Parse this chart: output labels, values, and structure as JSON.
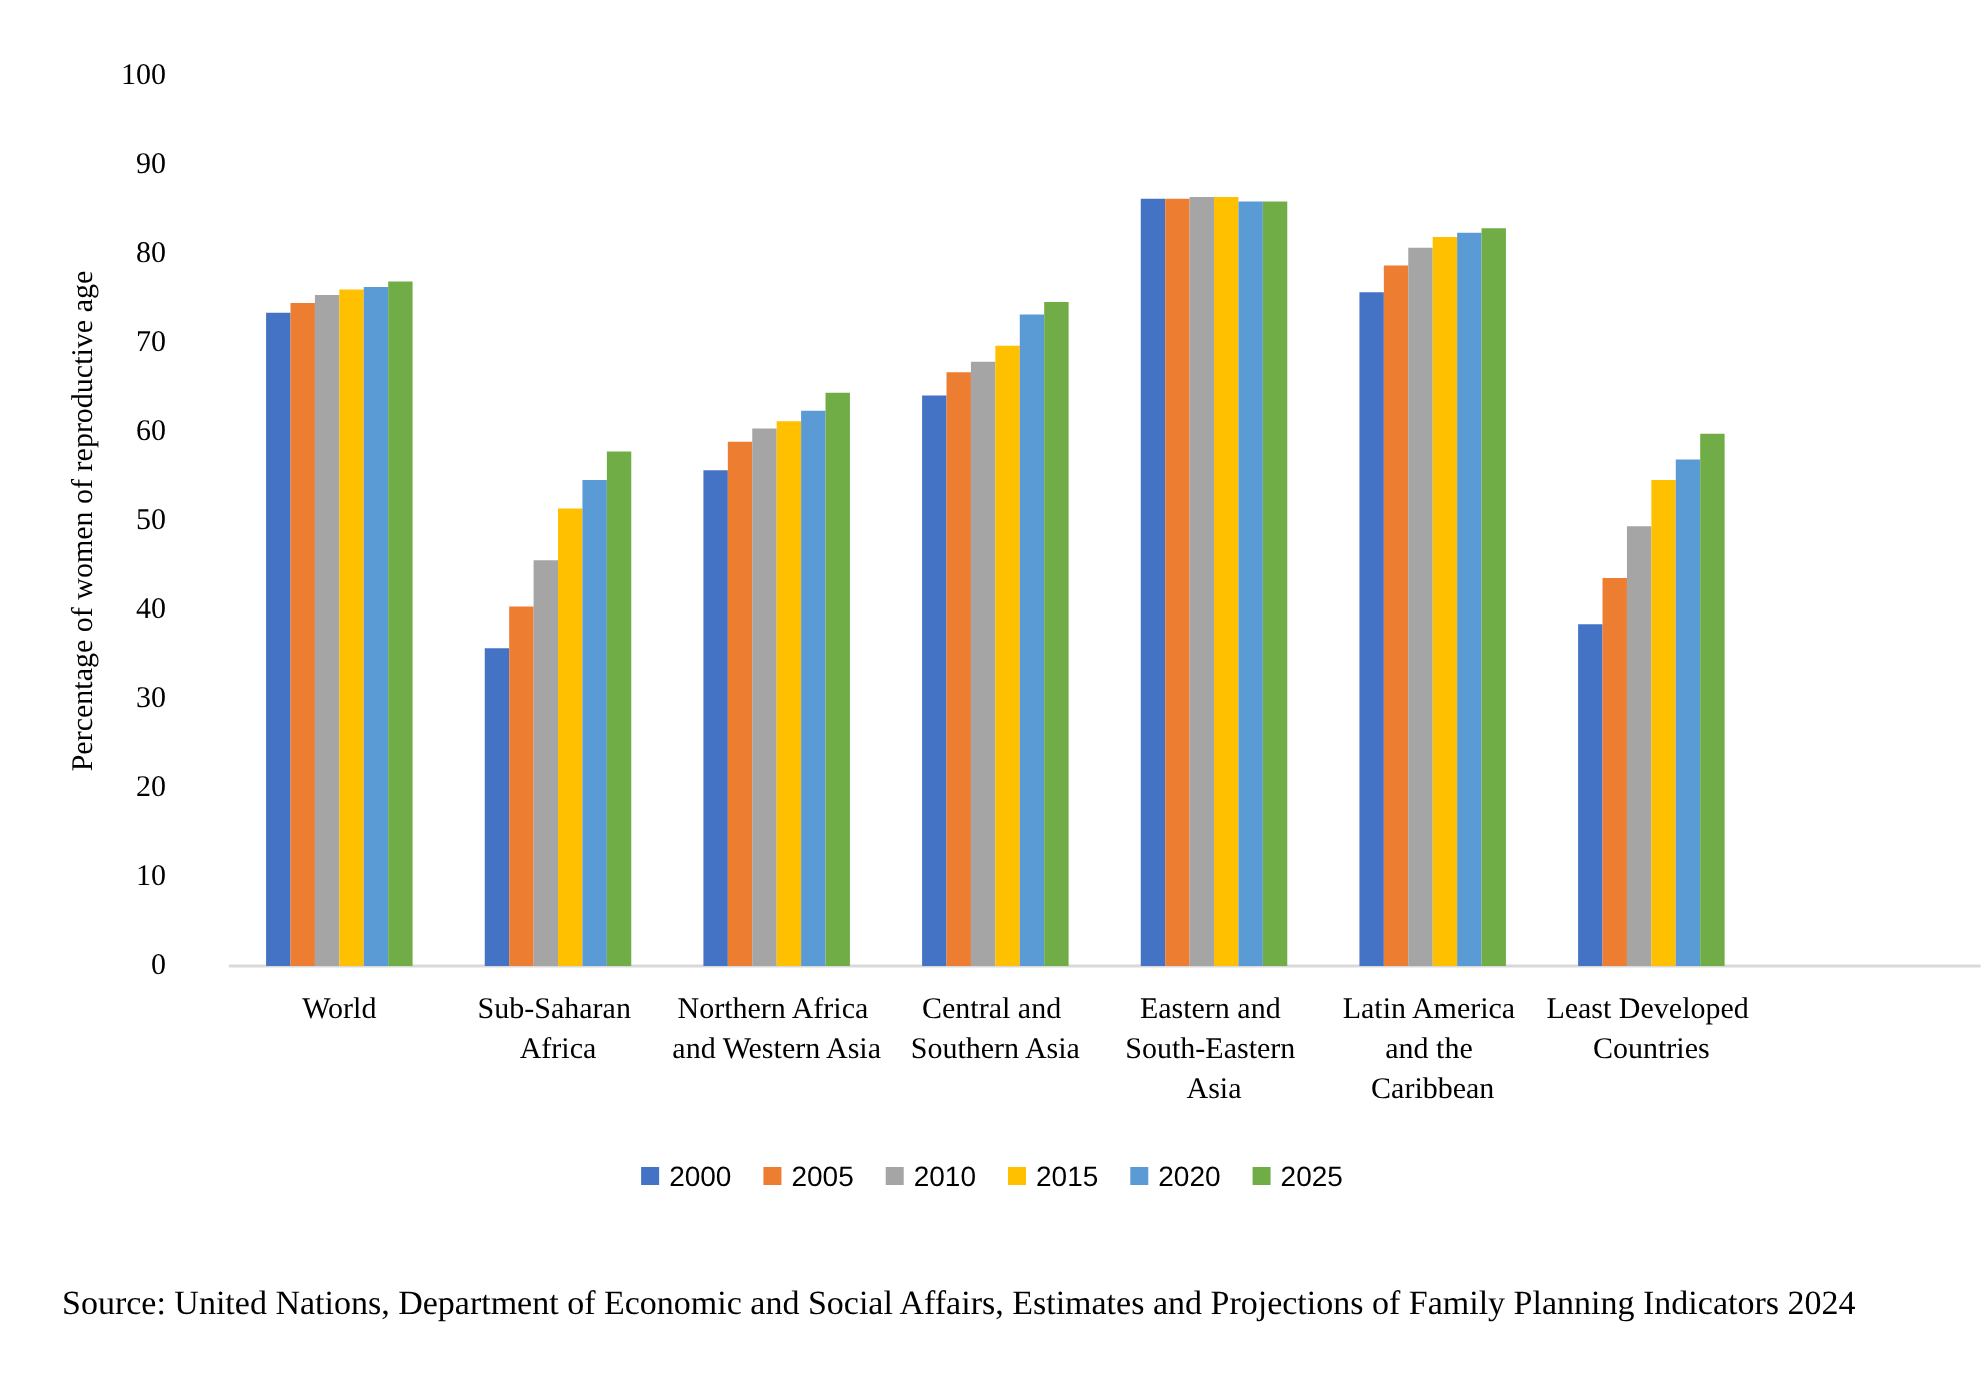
{
  "chart_data": {
    "type": "bar",
    "ylabel": "Percentage of women of reproductive age",
    "categories": [
      "World",
      "Sub-Saharan Africa",
      "Northern Africa and Western Asia",
      "Central and Southern Asia",
      "Eastern and South-Eastern Asia",
      "Latin America and the Caribbean",
      "Least Developed Countries",
      null
    ],
    "series": [
      {
        "name": "2000",
        "color": "#4472c4",
        "values": [
          73.4,
          35.7,
          55.7,
          64.1,
          86.2,
          75.7,
          38.4,
          null
        ]
      },
      {
        "name": "2005",
        "color": "#ed7d31",
        "values": [
          74.5,
          40.4,
          58.9,
          66.7,
          86.2,
          78.7,
          43.6,
          null
        ]
      },
      {
        "name": "2010",
        "color": "#a5a5a5",
        "values": [
          75.4,
          45.6,
          60.4,
          67.9,
          86.4,
          80.7,
          49.4,
          null
        ]
      },
      {
        "name": "2015",
        "color": "#ffc000",
        "values": [
          76.0,
          51.4,
          61.2,
          69.7,
          86.4,
          81.9,
          54.6,
          null
        ]
      },
      {
        "name": "2020",
        "color": "#5b9bd5",
        "values": [
          76.3,
          54.6,
          62.4,
          73.2,
          85.9,
          82.4,
          56.9,
          null
        ]
      },
      {
        "name": "2025",
        "color": "#70ad47",
        "values": [
          76.9,
          57.8,
          64.4,
          74.6,
          85.9,
          82.9,
          59.8,
          null
        ]
      }
    ],
    "ylim": [
      0,
      100
    ],
    "yticks": [
      0,
      10,
      20,
      30,
      40,
      50,
      60,
      70,
      80,
      90,
      100
    ],
    "grid": false,
    "legend": "bottom",
    "annotations": [
      "Source: United Nations, Department of Economic and Social Affairs, Estimates and Projections of Family Planning Indicators 2024"
    ]
  }
}
